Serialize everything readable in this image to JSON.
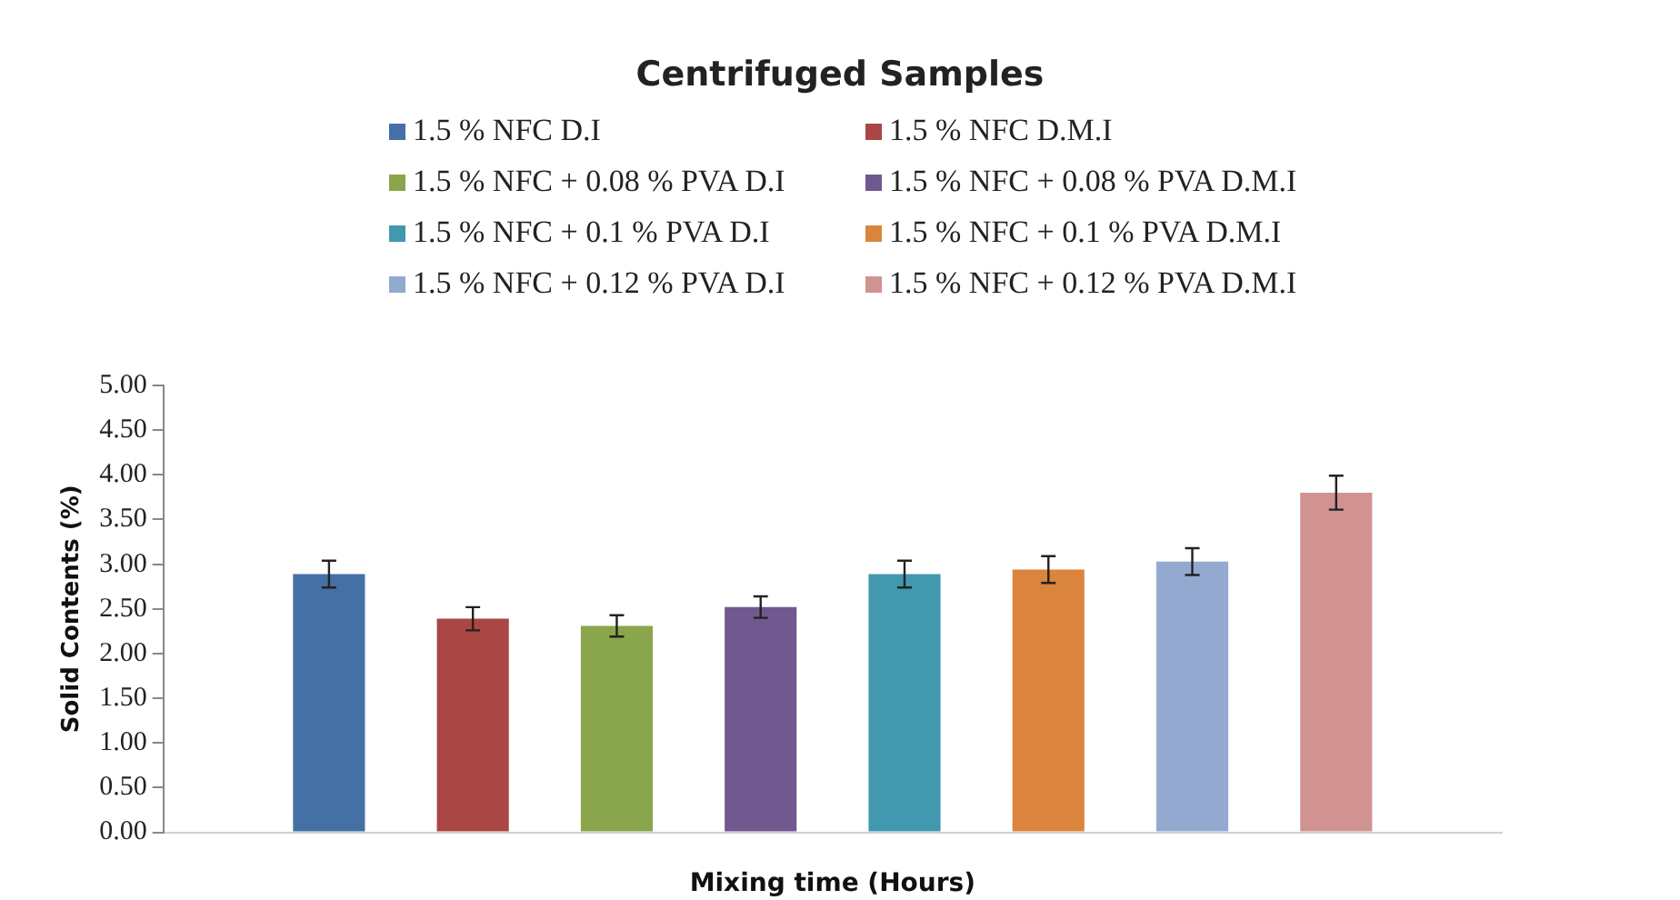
{
  "chart_data": {
    "type": "bar",
    "title": "Centrifuged Samples",
    "xlabel": "Mixing time (Hours)",
    "ylabel": "Solid Contents (%)",
    "categories": [
      null
    ],
    "series": [
      {
        "name": "1.5 % NFC D.I",
        "color": "#4470a6",
        "values": [
          2.89
        ],
        "errors": [
          0.15
        ]
      },
      {
        "name": "1.5 % NFC D.M.I",
        "color": "#aa4644",
        "values": [
          2.39
        ],
        "errors": [
          0.13
        ]
      },
      {
        "name": "1.5 % NFC + 0.08 % PVA D.I",
        "color": "#8aa64c",
        "values": [
          2.31
        ],
        "errors": [
          0.12
        ]
      },
      {
        "name": "1.5 % NFC + 0.08 % PVA D.M.I",
        "color": "#71588f",
        "values": [
          2.52
        ],
        "errors": [
          0.12
        ]
      },
      {
        "name": "1.5 % NFC + 0.1 % PVA D.I",
        "color": "#4298af",
        "values": [
          2.89
        ],
        "errors": [
          0.15
        ]
      },
      {
        "name": "1.5 % NFC + 0.1 % PVA D.M.I",
        "color": "#db843d",
        "values": [
          2.94
        ],
        "errors": [
          0.15
        ]
      },
      {
        "name": "1.5 % NFC + 0.12 % PVA D.I",
        "color": "#93a9cf",
        "values": [
          3.03
        ],
        "errors": [
          0.15
        ]
      },
      {
        "name": "1.5 % NFC + 0.12 % PVA D.M.I",
        "color": "#d09392",
        "values": [
          3.8
        ],
        "errors": [
          0.19
        ]
      }
    ],
    "ylim": [
      0,
      5
    ],
    "yticks": [
      {
        "value": 0,
        "label": "0.00"
      },
      {
        "value": 0.5,
        "label": "0.50"
      },
      {
        "value": 1,
        "label": "1.00"
      },
      {
        "value": 1.5,
        "label": "1.50"
      },
      {
        "value": 2,
        "label": "2.00"
      },
      {
        "value": 2.5,
        "label": "2.50"
      },
      {
        "value": 3,
        "label": "3.00"
      },
      {
        "value": 3.5,
        "label": "3.50"
      },
      {
        "value": 4,
        "label": "4.00"
      },
      {
        "value": 4.5,
        "label": "4.50"
      },
      {
        "value": 5,
        "label": "5.00"
      }
    ],
    "grid": false,
    "legend": "top"
  }
}
